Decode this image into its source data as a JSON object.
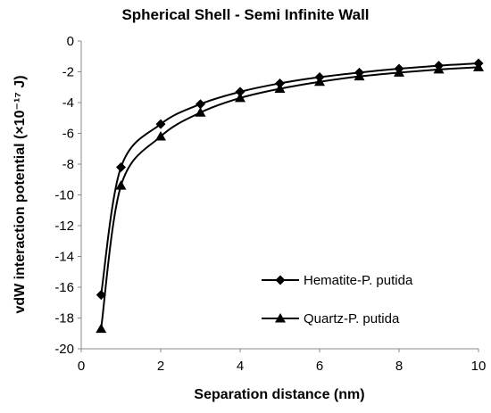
{
  "chart_data": {
    "type": "line",
    "title": "Spherical Shell - Semi Infinite Wall",
    "xlabel": "Separation distance (nm)",
    "ylabel": "vdW interaction potential (×10⁻¹⁷ J)",
    "xlim": [
      0,
      10
    ],
    "ylim": [
      -20,
      0
    ],
    "xticks": [
      "0",
      "2",
      "4",
      "6",
      "8",
      "10"
    ],
    "yticks": [
      "0",
      "-2",
      "-4",
      "-6",
      "-8",
      "-10",
      "-12",
      "-14",
      "-16",
      "-18",
      "-20"
    ],
    "grid": false,
    "legend_position": "lower-right",
    "series": [
      {
        "name": "Hematite-P. putida",
        "marker": "diamond",
        "color": "#000000",
        "x": [
          0.5,
          1,
          2,
          3,
          4,
          5,
          6,
          7,
          8,
          9,
          10
        ],
        "y": [
          -16.5,
          -8.2,
          -5.4,
          -4.1,
          -3.3,
          -2.75,
          -2.35,
          -2.05,
          -1.8,
          -1.6,
          -1.45
        ]
      },
      {
        "name": "Quartz-P. putida",
        "marker": "triangle",
        "color": "#000000",
        "x": [
          0.5,
          1,
          2,
          3,
          4,
          5,
          6,
          7,
          8,
          9,
          10
        ],
        "y": [
          -18.7,
          -9.4,
          -6.2,
          -4.65,
          -3.7,
          -3.1,
          -2.65,
          -2.3,
          -2.05,
          -1.85,
          -1.7
        ]
      }
    ]
  }
}
